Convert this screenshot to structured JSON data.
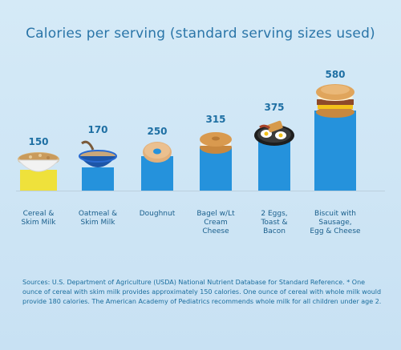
{
  "chart_data": {
    "type": "bar",
    "title": "Calories per serving (standard serving sizes used)",
    "categories": [
      "Cereal &\nSkim Milk",
      "Oatmeal &\nSkim Milk",
      "Doughnut",
      "Bagel w/Lt\nCream\nCheese",
      "2 Eggs,\nToast &\nBacon",
      "Biscuit with\nSausage,\nEgg & Cheese"
    ],
    "values": [
      150,
      170,
      250,
      315,
      375,
      580
    ],
    "value_labels": [
      "150",
      "170",
      "250",
      "315",
      "375",
      "580"
    ],
    "ylim": [
      0,
      600
    ],
    "grid": false,
    "colors": {
      "first_bar": "#efe13b",
      "bars": "#2592dc"
    }
  },
  "source_note": "Sources: U.S. Department of Agriculture (USDA) National Nutrient Database for Standard Reference. * One ounce of cereal with skim milk provides approximately 150 calories. One ounce of cereal with whole milk would provide 180 calories. The American Academy of Pediatrics recommends whole milk for all children under age 2.",
  "food_icons": [
    "cereal-bowl-icon",
    "oatmeal-bowl-icon",
    "doughnut-icon",
    "bagel-icon",
    "eggs-bacon-plate-icon",
    "biscuit-sandwich-icon"
  ]
}
